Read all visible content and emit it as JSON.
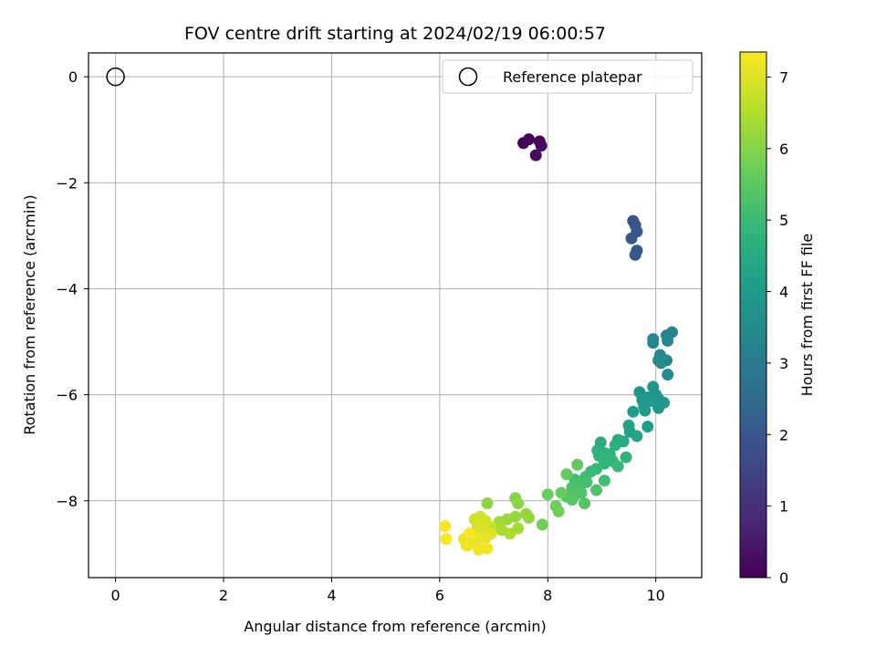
{
  "chart_data": {
    "type": "scatter",
    "title": "FOV centre drift starting at 2024/02/19 06:00:57",
    "xlabel": "Angular distance from reference (arcmin)",
    "ylabel": "Rotation from reference (arcmin)",
    "xlim": [
      -0.5,
      10.85
    ],
    "ylim": [
      -9.45,
      0.45
    ],
    "xticks": [
      0,
      2,
      4,
      6,
      8,
      10
    ],
    "yticks": [
      0,
      -2,
      -4,
      -6,
      -8
    ],
    "grid": true,
    "legend": {
      "placement": "top-right",
      "entries": [
        "Reference platepar"
      ]
    },
    "reference": {
      "x": 0,
      "y": 0,
      "label": "Reference platepar"
    },
    "colorbar": {
      "label": "Hours from first FF file",
      "range": [
        0,
        7.35
      ],
      "ticks": [
        0,
        1,
        2,
        3,
        4,
        5,
        6,
        7
      ],
      "colormap": "viridis"
    },
    "series": [
      {
        "points": [
          {
            "x": 7.55,
            "y": -1.25,
            "c": 0.05
          },
          {
            "x": 7.65,
            "y": -1.18,
            "c": 0.08
          },
          {
            "x": 7.85,
            "y": -1.22,
            "c": 0.1
          },
          {
            "x": 7.88,
            "y": -1.3,
            "c": 0.12
          },
          {
            "x": 7.78,
            "y": -1.48,
            "c": 0.15
          },
          {
            "x": 9.58,
            "y": -2.72,
            "c": 1.9
          },
          {
            "x": 9.62,
            "y": -2.8,
            "c": 1.92
          },
          {
            "x": 9.65,
            "y": -2.92,
            "c": 1.95
          },
          {
            "x": 9.55,
            "y": -3.05,
            "c": 1.97
          },
          {
            "x": 9.65,
            "y": -3.28,
            "c": 2.0
          },
          {
            "x": 9.62,
            "y": -3.36,
            "c": 2.02
          },
          {
            "x": 10.3,
            "y": -4.82,
            "c": 3.3
          },
          {
            "x": 10.2,
            "y": -4.88,
            "c": 3.32
          },
          {
            "x": 9.95,
            "y": -4.95,
            "c": 3.35
          },
          {
            "x": 10.22,
            "y": -4.98,
            "c": 3.37
          },
          {
            "x": 9.95,
            "y": -5.02,
            "c": 3.4
          },
          {
            "x": 10.08,
            "y": -5.25,
            "c": 3.42
          },
          {
            "x": 10.05,
            "y": -5.35,
            "c": 3.44
          },
          {
            "x": 10.2,
            "y": -5.35,
            "c": 3.46
          },
          {
            "x": 10.1,
            "y": -5.4,
            "c": 3.48
          },
          {
            "x": 10.22,
            "y": -5.62,
            "c": 3.5
          },
          {
            "x": 9.95,
            "y": -5.85,
            "c": 3.8
          },
          {
            "x": 9.7,
            "y": -5.95,
            "c": 3.82
          },
          {
            "x": 10.0,
            "y": -6.0,
            "c": 3.85
          },
          {
            "x": 9.85,
            "y": -6.05,
            "c": 3.87
          },
          {
            "x": 9.75,
            "y": -6.1,
            "c": 3.9
          },
          {
            "x": 9.9,
            "y": -6.12,
            "c": 3.92
          },
          {
            "x": 10.05,
            "y": -6.08,
            "c": 3.95
          },
          {
            "x": 10.15,
            "y": -6.15,
            "c": 3.97
          },
          {
            "x": 9.78,
            "y": -6.22,
            "c": 4.0
          },
          {
            "x": 10.05,
            "y": -6.25,
            "c": 4.02
          },
          {
            "x": 9.8,
            "y": -6.3,
            "c": 4.05
          },
          {
            "x": 9.58,
            "y": -6.32,
            "c": 4.08
          },
          {
            "x": 9.85,
            "y": -6.6,
            "c": 4.15
          },
          {
            "x": 9.5,
            "y": -6.58,
            "c": 4.2
          },
          {
            "x": 9.52,
            "y": -6.7,
            "c": 4.25
          },
          {
            "x": 9.65,
            "y": -6.78,
            "c": 4.3
          },
          {
            "x": 9.4,
            "y": -6.88,
            "c": 4.5
          },
          {
            "x": 9.3,
            "y": -6.85,
            "c": 4.55
          },
          {
            "x": 8.98,
            "y": -6.9,
            "c": 4.6
          },
          {
            "x": 9.25,
            "y": -6.95,
            "c": 4.65
          },
          {
            "x": 8.92,
            "y": -7.05,
            "c": 4.7
          },
          {
            "x": 9.05,
            "y": -7.1,
            "c": 4.72
          },
          {
            "x": 9.15,
            "y": -7.12,
            "c": 4.75
          },
          {
            "x": 8.95,
            "y": -7.15,
            "c": 4.78
          },
          {
            "x": 9.45,
            "y": -7.18,
            "c": 4.8
          },
          {
            "x": 9.2,
            "y": -7.25,
            "c": 4.85
          },
          {
            "x": 9.05,
            "y": -7.3,
            "c": 4.9
          },
          {
            "x": 9.3,
            "y": -7.35,
            "c": 4.92
          },
          {
            "x": 8.9,
            "y": -7.4,
            "c": 4.95
          },
          {
            "x": 8.8,
            "y": -7.45,
            "c": 5.0
          },
          {
            "x": 8.7,
            "y": -7.55,
            "c": 5.05
          },
          {
            "x": 9.05,
            "y": -7.62,
            "c": 5.1
          },
          {
            "x": 8.5,
            "y": -7.6,
            "c": 5.15
          },
          {
            "x": 8.72,
            "y": -7.65,
            "c": 5.18
          },
          {
            "x": 8.6,
            "y": -7.7,
            "c": 5.2
          },
          {
            "x": 8.45,
            "y": -7.75,
            "c": 5.25
          },
          {
            "x": 8.9,
            "y": -7.8,
            "c": 5.28
          },
          {
            "x": 8.62,
            "y": -7.85,
            "c": 5.3
          },
          {
            "x": 8.5,
            "y": -7.9,
            "c": 5.33
          },
          {
            "x": 8.35,
            "y": -7.92,
            "c": 5.36
          },
          {
            "x": 8.45,
            "y": -7.98,
            "c": 5.4
          },
          {
            "x": 8.68,
            "y": -8.05,
            "c": 5.42
          },
          {
            "x": 8.55,
            "y": -7.32,
            "c": 5.55
          },
          {
            "x": 8.35,
            "y": -7.5,
            "c": 5.58
          },
          {
            "x": 8.25,
            "y": -7.85,
            "c": 5.62
          },
          {
            "x": 8.0,
            "y": -7.88,
            "c": 5.65
          },
          {
            "x": 8.15,
            "y": -8.1,
            "c": 5.7
          },
          {
            "x": 8.2,
            "y": -8.2,
            "c": 5.72
          },
          {
            "x": 7.9,
            "y": -8.45,
            "c": 5.78
          },
          {
            "x": 7.4,
            "y": -7.95,
            "c": 6.0
          },
          {
            "x": 7.45,
            "y": -8.05,
            "c": 6.05
          },
          {
            "x": 6.88,
            "y": -8.05,
            "c": 6.1
          },
          {
            "x": 7.6,
            "y": -8.25,
            "c": 6.15
          },
          {
            "x": 7.65,
            "y": -8.32,
            "c": 6.18
          },
          {
            "x": 7.4,
            "y": -8.3,
            "c": 6.2
          },
          {
            "x": 7.25,
            "y": -8.35,
            "c": 6.25
          },
          {
            "x": 7.1,
            "y": -8.4,
            "c": 6.3
          },
          {
            "x": 7.45,
            "y": -8.52,
            "c": 6.35
          },
          {
            "x": 7.15,
            "y": -8.55,
            "c": 6.4
          },
          {
            "x": 7.3,
            "y": -8.62,
            "c": 6.45
          },
          {
            "x": 6.95,
            "y": -8.5,
            "c": 6.7
          },
          {
            "x": 6.8,
            "y": -8.4,
            "c": 6.75
          },
          {
            "x": 6.65,
            "y": -8.35,
            "c": 6.8
          },
          {
            "x": 6.75,
            "y": -8.3,
            "c": 6.85
          },
          {
            "x": 6.85,
            "y": -8.38,
            "c": 6.9
          },
          {
            "x": 6.7,
            "y": -8.5,
            "c": 6.92
          },
          {
            "x": 6.8,
            "y": -8.55,
            "c": 6.95
          },
          {
            "x": 6.95,
            "y": -8.62,
            "c": 7.0
          },
          {
            "x": 6.6,
            "y": -8.62,
            "c": 7.02
          },
          {
            "x": 6.85,
            "y": -8.7,
            "c": 7.05
          },
          {
            "x": 6.7,
            "y": -8.75,
            "c": 7.08
          },
          {
            "x": 6.45,
            "y": -8.72,
            "c": 7.1
          },
          {
            "x": 6.6,
            "y": -8.8,
            "c": 7.15
          },
          {
            "x": 6.5,
            "y": -8.85,
            "c": 7.18
          },
          {
            "x": 6.72,
            "y": -8.92,
            "c": 7.2
          },
          {
            "x": 6.88,
            "y": -8.9,
            "c": 7.22
          },
          {
            "x": 6.1,
            "y": -8.48,
            "c": 7.25
          },
          {
            "x": 6.12,
            "y": -8.72,
            "c": 7.3
          },
          {
            "x": 6.55,
            "y": -8.62,
            "c": 7.32
          }
        ]
      }
    ]
  }
}
